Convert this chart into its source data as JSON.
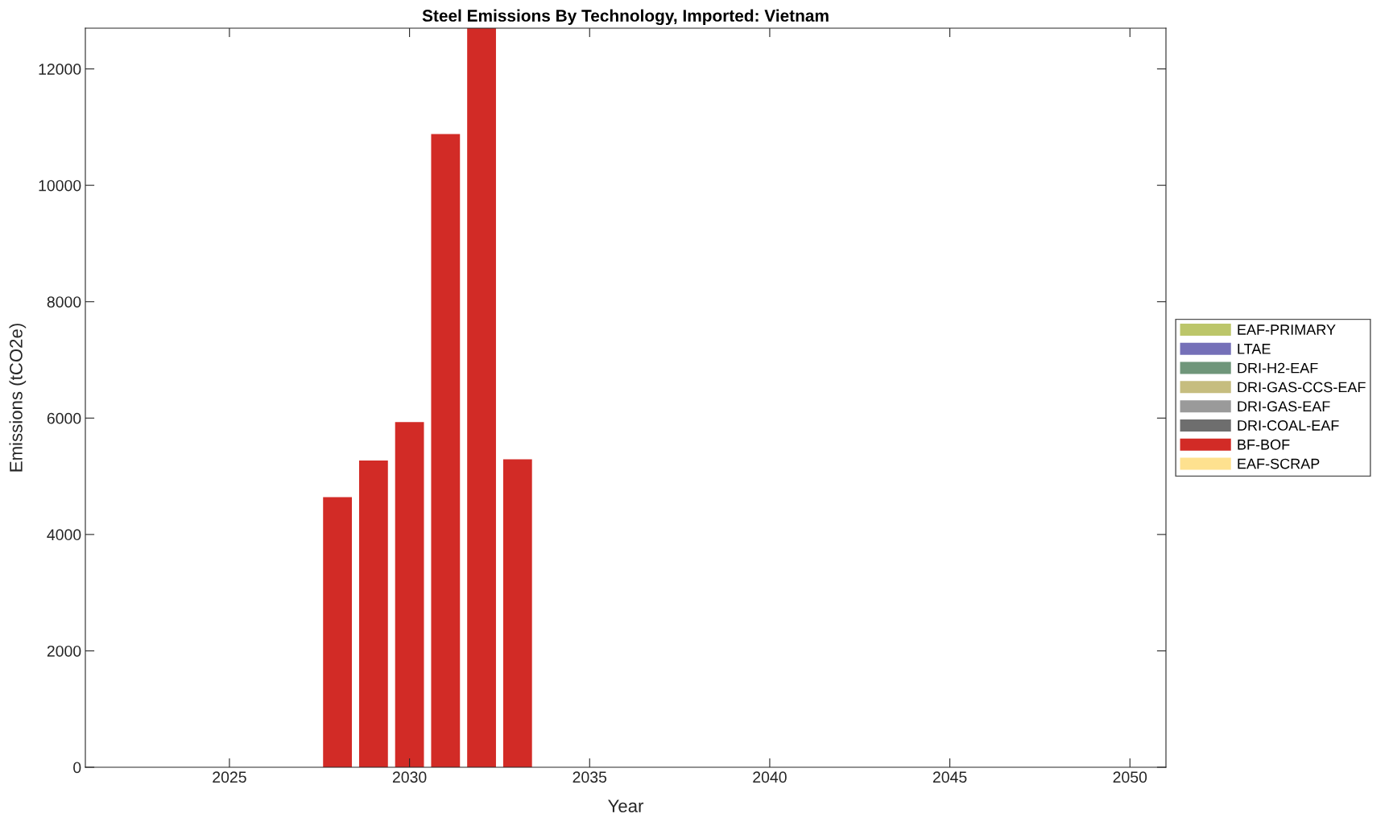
{
  "chart_data": {
    "type": "bar",
    "title": "Steel Emissions By Technology, Imported: Vietnam",
    "xlabel": "Year",
    "ylabel": "Emissions (tCO2e)",
    "x": [
      2028,
      2029,
      2030,
      2031,
      2032,
      2033
    ],
    "series": [
      {
        "name": "EAF-SCRAP",
        "color": "#fee18f",
        "values": [
          0,
          0,
          0,
          0,
          0,
          0
        ]
      },
      {
        "name": "BF-BOF",
        "color": "#d22b26",
        "values": [
          4640,
          5270,
          5930,
          10880,
          12700,
          5290
        ]
      },
      {
        "name": "DRI-COAL-EAF",
        "color": "#6e6e6e",
        "values": [
          0,
          0,
          0,
          0,
          0,
          0
        ]
      },
      {
        "name": "DRI-GAS-EAF",
        "color": "#9a9a9a",
        "values": [
          0,
          0,
          0,
          0,
          0,
          0
        ]
      },
      {
        "name": "DRI-GAS-CCS-EAF",
        "color": "#c6bd7f",
        "values": [
          0,
          0,
          0,
          0,
          0,
          0
        ]
      },
      {
        "name": "DRI-H2-EAF",
        "color": "#6f967a",
        "values": [
          0,
          0,
          0,
          0,
          0,
          0
        ]
      },
      {
        "name": "LTAE",
        "color": "#7570b8",
        "values": [
          0,
          0,
          0,
          0,
          0,
          0
        ]
      },
      {
        "name": "EAF-PRIMARY",
        "color": "#bcc66a",
        "values": [
          0,
          0,
          0,
          0,
          0,
          0
        ]
      }
    ],
    "xlim": [
      2021,
      2051
    ],
    "xticks": [
      2025,
      2030,
      2035,
      2040,
      2045,
      2050
    ],
    "ylim": [
      0,
      12700
    ],
    "yticks": [
      0,
      2000,
      4000,
      6000,
      8000,
      10000,
      12000
    ],
    "grid": false,
    "legend": "right"
  }
}
